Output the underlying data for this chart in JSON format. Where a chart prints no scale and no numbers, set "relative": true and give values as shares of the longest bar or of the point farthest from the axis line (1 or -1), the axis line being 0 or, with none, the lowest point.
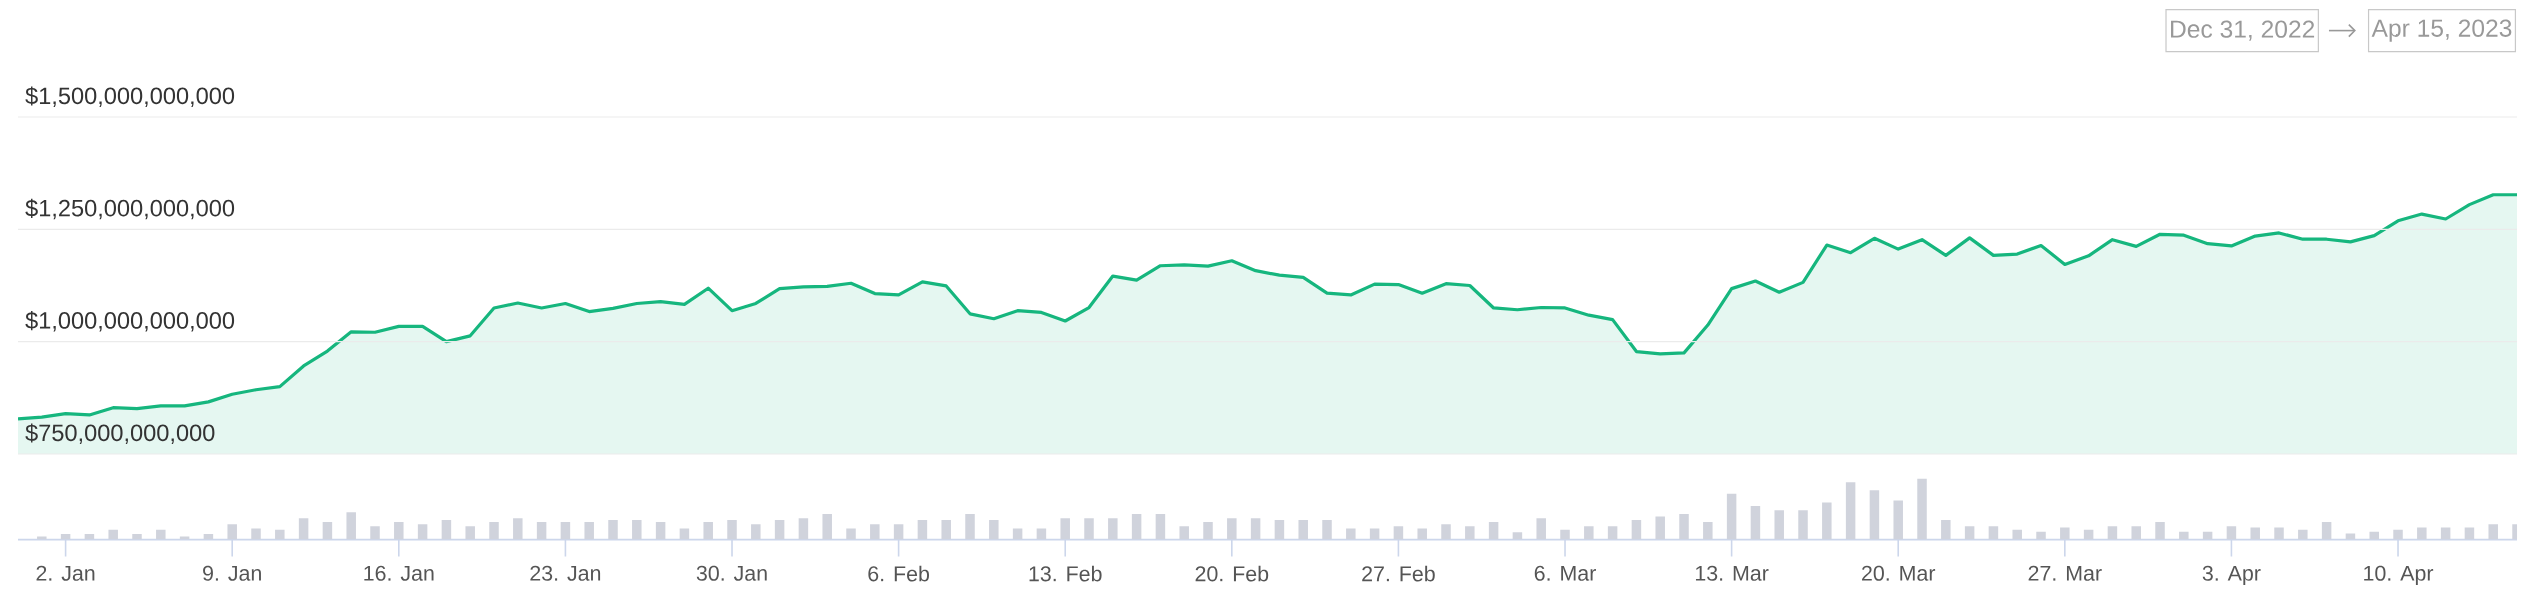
{
  "chart_data": [
    {
      "type": "area",
      "tick_labels": "y",
      "grid": "y",
      "color": "#16b67e",
      "annotations": [
        "Dec 31, 2022",
        "Apr 15, 2023"
      ],
      "xlim": [
        "2022-12-31",
        "2023-04-15"
      ],
      "ylim": [
        750000000000,
        1500000000000
      ],
      "yticks": [
        {
          "value": 750000000000,
          "label": "$750,000,000,000"
        },
        {
          "value": 1000000000000,
          "label": "$1,000,000,000,000"
        },
        {
          "value": 1250000000000,
          "label": "$1,250,000,000,000"
        },
        {
          "value": 1500000000000,
          "label": "$1,500,000,000,000"
        }
      ],
      "x": [
        "2022-12-31",
        "2023-01-01",
        "2023-01-02",
        "2023-01-03",
        "2023-01-04",
        "2023-01-05",
        "2023-01-06",
        "2023-01-07",
        "2023-01-08",
        "2023-01-09",
        "2023-01-10",
        "2023-01-11",
        "2023-01-12",
        "2023-01-13",
        "2023-01-14",
        "2023-01-15",
        "2023-01-16",
        "2023-01-17",
        "2023-01-18",
        "2023-01-19",
        "2023-01-20",
        "2023-01-21",
        "2023-01-22",
        "2023-01-23",
        "2023-01-24",
        "2023-01-25",
        "2023-01-26",
        "2023-01-27",
        "2023-01-28",
        "2023-01-29",
        "2023-01-30",
        "2023-01-31",
        "2023-02-01",
        "2023-02-02",
        "2023-02-03",
        "2023-02-04",
        "2023-02-05",
        "2023-02-06",
        "2023-02-07",
        "2023-02-08",
        "2023-02-09",
        "2023-02-10",
        "2023-02-11",
        "2023-02-12",
        "2023-02-13",
        "2023-02-14",
        "2023-02-15",
        "2023-02-16",
        "2023-02-17",
        "2023-02-18",
        "2023-02-19",
        "2023-02-20",
        "2023-02-21",
        "2023-02-22",
        "2023-02-23",
        "2023-02-24",
        "2023-02-25",
        "2023-02-26",
        "2023-02-27",
        "2023-02-28",
        "2023-03-01",
        "2023-03-02",
        "2023-03-03",
        "2023-03-04",
        "2023-03-05",
        "2023-03-06",
        "2023-03-07",
        "2023-03-08",
        "2023-03-09",
        "2023-03-10",
        "2023-03-11",
        "2023-03-12",
        "2023-03-13",
        "2023-03-14",
        "2023-03-15",
        "2023-03-16",
        "2023-03-17",
        "2023-03-18",
        "2023-03-19",
        "2023-03-20",
        "2023-03-21",
        "2023-03-22",
        "2023-03-23",
        "2023-03-24",
        "2023-03-25",
        "2023-03-26",
        "2023-03-27",
        "2023-03-28",
        "2023-03-29",
        "2023-03-30",
        "2023-03-31",
        "2023-04-01",
        "2023-04-02",
        "2023-04-03",
        "2023-04-04",
        "2023-04-05",
        "2023-04-06",
        "2023-04-07",
        "2023-04-08",
        "2023-04-09",
        "2023-04-10",
        "2023-04-11",
        "2023-04-12",
        "2023-04-13",
        "2023-04-14",
        "2023-04-15"
      ],
      "values": [
        828000000000,
        832000000000,
        840000000000,
        837000000000,
        853000000000,
        851000000000,
        857000000000,
        857000000000,
        866000000000,
        883000000000,
        893000000000,
        900000000000,
        946000000000,
        979000000000,
        1022000000000,
        1021000000000,
        1034000000000,
        1034000000000,
        1000000000000,
        1013000000000,
        1075000000000,
        1086000000000,
        1075000000000,
        1085000000000,
        1067000000000,
        1074000000000,
        1085000000000,
        1089000000000,
        1083000000000,
        1119000000000,
        1069000000000,
        1085000000000,
        1118000000000,
        1122000000000,
        1123000000000,
        1130000000000,
        1107000000000,
        1104000000000,
        1133000000000,
        1124000000000,
        1062000000000,
        1051000000000,
        1069000000000,
        1065000000000,
        1046000000000,
        1076000000000,
        1146000000000,
        1137000000000,
        1169000000000,
        1171000000000,
        1168000000000,
        1180000000000,
        1158000000000,
        1148000000000,
        1143000000000,
        1108000000000,
        1104000000000,
        1128000000000,
        1127000000000,
        1108000000000,
        1129000000000,
        1125000000000,
        1075000000000,
        1071000000000,
        1076000000000,
        1075000000000,
        1059000000000,
        1049000000000,
        978000000000,
        973000000000,
        975000000000,
        1037000000000,
        1118000000000,
        1135000000000,
        1110000000000,
        1132000000000,
        1215000000000,
        1198000000000,
        1230000000000,
        1206000000000,
        1227000000000,
        1192000000000,
        1231000000000,
        1192000000000,
        1195000000000,
        1214000000000,
        1172000000000,
        1191000000000,
        1227000000000,
        1212000000000,
        1239000000000,
        1237000000000,
        1218000000000,
        1213000000000,
        1235000000000,
        1242000000000,
        1228000000000,
        1228000000000,
        1222000000000,
        1236000000000,
        1269000000000,
        1284000000000,
        1273000000000,
        1305000000000,
        1327000000000,
        1327000000000
      ]
    },
    {
      "type": "bar",
      "relative": true,
      "tick_labels": "x",
      "color": "#d0d3dc",
      "xlim": [
        "2022-12-31",
        "2023-04-15"
      ],
      "xticks": [
        {
          "value": "2023-01-02",
          "label": "2. Jan"
        },
        {
          "value": "2023-01-09",
          "label": "9. Jan"
        },
        {
          "value": "2023-01-16",
          "label": "16. Jan"
        },
        {
          "value": "2023-01-23",
          "label": "23. Jan"
        },
        {
          "value": "2023-01-30",
          "label": "30. Jan"
        },
        {
          "value": "2023-02-06",
          "label": "6. Feb"
        },
        {
          "value": "2023-02-13",
          "label": "13. Feb"
        },
        {
          "value": "2023-02-20",
          "label": "20. Feb"
        },
        {
          "value": "2023-02-27",
          "label": "27. Feb"
        },
        {
          "value": "2023-03-06",
          "label": "6. Mar"
        },
        {
          "value": "2023-03-13",
          "label": "13. Mar"
        },
        {
          "value": "2023-03-20",
          "label": "20. Mar"
        },
        {
          "value": "2023-03-27",
          "label": "27. Mar"
        },
        {
          "value": "2023-04-03",
          "label": "3. Apr"
        },
        {
          "value": "2023-04-10",
          "label": "10. Apr"
        }
      ],
      "x": [
        "2023-01-01",
        "2023-01-02",
        "2023-01-03",
        "2023-01-04",
        "2023-01-05",
        "2023-01-06",
        "2023-01-07",
        "2023-01-08",
        "2023-01-09",
        "2023-01-10",
        "2023-01-11",
        "2023-01-12",
        "2023-01-13",
        "2023-01-14",
        "2023-01-15",
        "2023-01-16",
        "2023-01-17",
        "2023-01-18",
        "2023-01-19",
        "2023-01-20",
        "2023-01-21",
        "2023-01-22",
        "2023-01-23",
        "2023-01-24",
        "2023-01-25",
        "2023-01-26",
        "2023-01-27",
        "2023-01-28",
        "2023-01-29",
        "2023-01-30",
        "2023-01-31",
        "2023-02-01",
        "2023-02-02",
        "2023-02-03",
        "2023-02-04",
        "2023-02-05",
        "2023-02-06",
        "2023-02-07",
        "2023-02-08",
        "2023-02-09",
        "2023-02-10",
        "2023-02-11",
        "2023-02-12",
        "2023-02-13",
        "2023-02-14",
        "2023-02-15",
        "2023-02-16",
        "2023-02-17",
        "2023-02-18",
        "2023-02-19",
        "2023-02-20",
        "2023-02-21",
        "2023-02-22",
        "2023-02-23",
        "2023-02-24",
        "2023-02-25",
        "2023-02-26",
        "2023-02-27",
        "2023-02-28",
        "2023-03-01",
        "2023-03-02",
        "2023-03-03",
        "2023-03-04",
        "2023-03-05",
        "2023-03-06",
        "2023-03-07",
        "2023-03-08",
        "2023-03-09",
        "2023-03-10",
        "2023-03-11",
        "2023-03-12",
        "2023-03-13",
        "2023-03-14",
        "2023-03-15",
        "2023-03-16",
        "2023-03-17",
        "2023-03-18",
        "2023-03-19",
        "2023-03-20",
        "2023-03-21",
        "2023-03-22",
        "2023-03-23",
        "2023-03-24",
        "2023-03-25",
        "2023-03-26",
        "2023-03-27",
        "2023-03-28",
        "2023-03-29",
        "2023-03-30",
        "2023-03-31",
        "2023-04-01",
        "2023-04-02",
        "2023-04-03",
        "2023-04-04",
        "2023-04-05",
        "2023-04-06",
        "2023-04-07",
        "2023-04-08",
        "2023-04-09",
        "2023-04-10",
        "2023-04-11",
        "2023-04-12",
        "2023-04-13",
        "2023-04-14",
        "2023-04-15"
      ],
      "values": [
        0.05,
        0.09,
        0.09,
        0.16,
        0.09,
        0.16,
        0.05,
        0.09,
        0.25,
        0.18,
        0.16,
        0.35,
        0.29,
        0.45,
        0.22,
        0.29,
        0.25,
        0.32,
        0.22,
        0.29,
        0.35,
        0.29,
        0.29,
        0.29,
        0.32,
        0.32,
        0.29,
        0.18,
        0.29,
        0.32,
        0.25,
        0.32,
        0.35,
        0.42,
        0.18,
        0.25,
        0.25,
        0.32,
        0.32,
        0.42,
        0.32,
        0.18,
        0.18,
        0.35,
        0.35,
        0.35,
        0.42,
        0.42,
        0.22,
        0.29,
        0.35,
        0.35,
        0.32,
        0.32,
        0.32,
        0.18,
        0.18,
        0.22,
        0.18,
        0.25,
        0.22,
        0.29,
        0.12,
        0.35,
        0.16,
        0.22,
        0.22,
        0.32,
        0.38,
        0.42,
        0.29,
        0.75,
        0.55,
        0.48,
        0.48,
        0.61,
        0.94,
        0.81,
        0.64,
        1,
        0.32,
        0.22,
        0.22,
        0.16,
        0.13,
        0.2,
        0.16,
        0.22,
        0.22,
        0.29,
        0.13,
        0.13,
        0.22,
        0.2,
        0.2,
        0.16,
        0.29,
        0.1,
        0.13,
        0.16,
        0.2,
        0.2,
        0.2,
        0.25,
        0.25
      ]
    }
  ]
}
